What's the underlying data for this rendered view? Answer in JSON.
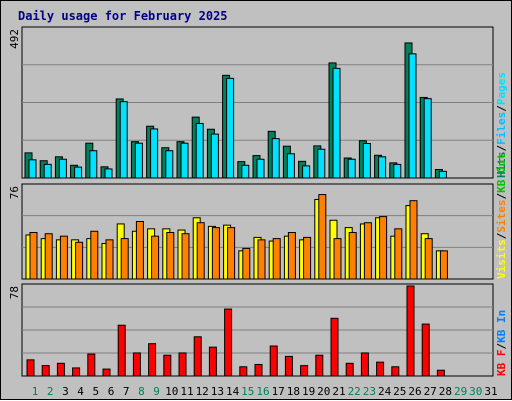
{
  "title": "Daily usage for February 2025",
  "colors": {
    "background": "#c0c0c0",
    "plot_bg": "#c0c0c0",
    "title": "#00008b",
    "hits": "#00805c",
    "files": "#00c0ff",
    "pages": "#00e0ff",
    "visits": "#ffff00",
    "sites": "#ff8000",
    "kb": "#ff0000",
    "kbin": "#0080ff",
    "kbout": "#00c000",
    "weekday": "#000000",
    "weekend": "#00805c"
  },
  "chart_data": [
    {
      "type": "bar",
      "id": "hits_files",
      "ymax_label": "492",
      "legend": [
        {
          "label": "Hits",
          "color": "#00805c"
        },
        {
          "label": "/",
          "color": "#000000"
        },
        {
          "label": "Files",
          "color": "#00c0ff"
        },
        {
          "label": "/",
          "color": "#000000"
        },
        {
          "label": "Pages",
          "color": "#00e0ff"
        }
      ],
      "categories": [
        "1",
        "2",
        "3",
        "4",
        "5",
        "6",
        "7",
        "8",
        "9",
        "10",
        "11",
        "12",
        "13",
        "14",
        "15",
        "16",
        "17",
        "18",
        "19",
        "20",
        "21",
        "22",
        "23",
        "24",
        "25",
        "26",
        "27",
        "28"
      ],
      "series": [
        {
          "name": "Hits",
          "values": [
            83,
            57,
            70,
            42,
            115,
            37,
            261,
            120,
            171,
            100,
            120,
            201,
            161,
            339,
            54,
            74,
            154,
            105,
            55,
            106,
            380,
            66,
            123,
            75,
            50,
            446,
            266,
            28
          ]
        },
        {
          "name": "Files",
          "values": [
            60,
            45,
            62,
            36,
            90,
            30,
            252,
            115,
            162,
            90,
            115,
            180,
            145,
            329,
            42,
            62,
            130,
            80,
            40,
            95,
            362,
            62,
            114,
            70,
            45,
            410,
            262,
            22
          ]
        }
      ],
      "ylim": [
        0,
        492
      ]
    },
    {
      "type": "bar",
      "id": "visits_sites",
      "ymax_label": "76",
      "legend": [
        {
          "label": "Visits",
          "color": "#ffff00"
        },
        {
          "label": "/",
          "color": "#000000"
        },
        {
          "label": "Sites",
          "color": "#ff8000"
        },
        {
          "label": "/",
          "color": "#000000"
        },
        {
          "label": "KB Out",
          "color": "#00c000"
        }
      ],
      "categories": [
        "1",
        "2",
        "3",
        "4",
        "5",
        "6",
        "7",
        "8",
        "9",
        "10",
        "11",
        "12",
        "13",
        "14",
        "15",
        "16",
        "17",
        "18",
        "19",
        "20",
        "21",
        "22",
        "23",
        "24",
        "25",
        "26",
        "27",
        "28"
      ],
      "series": [
        {
          "name": "Visits",
          "values": [
            36,
            33,
            32,
            32,
            33,
            29,
            45,
            39,
            41,
            41,
            40,
            50,
            43,
            44,
            23,
            34,
            31,
            35,
            32,
            65,
            48,
            42,
            45,
            50,
            35,
            60,
            37,
            23
          ]
        },
        {
          "name": "Sites",
          "values": [
            38,
            37,
            35,
            30,
            39,
            32,
            33,
            47,
            35,
            38,
            37,
            46,
            42,
            42,
            25,
            32,
            33,
            38,
            34,
            69,
            33,
            38,
            46,
            51,
            41,
            64,
            33,
            23
          ]
        }
      ],
      "ylim": [
        0,
        76
      ]
    },
    {
      "type": "bar",
      "id": "kbytes",
      "ymax_label": "78",
      "legend": [
        {
          "label": "KB F",
          "color": "#ff0000"
        },
        {
          "label": "/",
          "color": "#000000"
        },
        {
          "label": "KB In",
          "color": "#0080ff"
        }
      ],
      "categories": [
        "1",
        "2",
        "3",
        "4",
        "5",
        "6",
        "7",
        "8",
        "9",
        "10",
        "11",
        "12",
        "13",
        "14",
        "15",
        "16",
        "17",
        "18",
        "19",
        "20",
        "21",
        "22",
        "23",
        "24",
        "25",
        "26",
        "27",
        "28"
      ],
      "series": [
        {
          "name": "KB F",
          "values": [
            14,
            9,
            11,
            7,
            19,
            6,
            44,
            20,
            28,
            18,
            20,
            34,
            25,
            58,
            8,
            10,
            26,
            17,
            9,
            18,
            50,
            11,
            20,
            12,
            8,
            78,
            45,
            5
          ]
        }
      ],
      "ylim": [
        0,
        78
      ]
    }
  ],
  "days": [
    "1",
    "2",
    "3",
    "4",
    "5",
    "6",
    "7",
    "8",
    "9",
    "10",
    "11",
    "12",
    "13",
    "14",
    "15",
    "16",
    "17",
    "18",
    "19",
    "20",
    "21",
    "22",
    "23",
    "24",
    "25",
    "26",
    "27",
    "28",
    "29",
    "30",
    "31"
  ],
  "weekend_days": [
    "1",
    "2",
    "8",
    "9",
    "15",
    "16",
    "22",
    "23",
    "29",
    "30"
  ]
}
